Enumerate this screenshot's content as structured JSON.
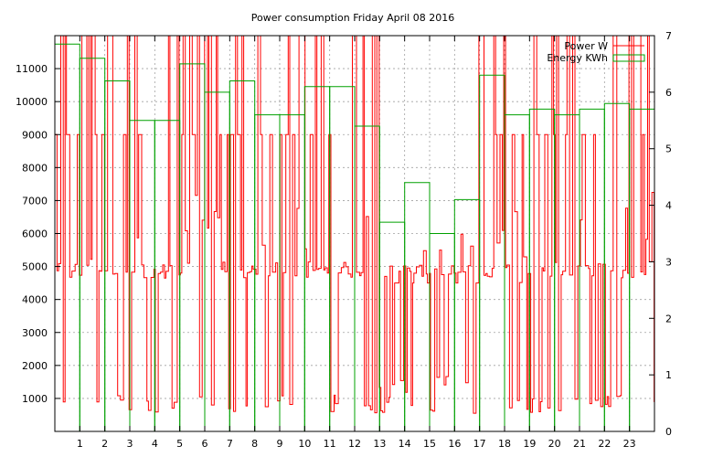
{
  "chart_data": {
    "type": "line",
    "title": "Power consumption Friday April 08 2016",
    "xlabel": "",
    "ylabel": "",
    "y2label": "",
    "xlim": [
      0,
      24
    ],
    "ylim": [
      0,
      12000
    ],
    "y2lim": [
      0,
      7
    ],
    "x_ticks": [
      1,
      2,
      3,
      4,
      5,
      6,
      7,
      8,
      9,
      10,
      11,
      12,
      13,
      14,
      15,
      16,
      17,
      18,
      19,
      20,
      21,
      22,
      23
    ],
    "y_ticks": [
      1000,
      2000,
      3000,
      4000,
      5000,
      6000,
      7000,
      8000,
      9000,
      10000,
      11000
    ],
    "y2_ticks": [
      0,
      1,
      2,
      3,
      4,
      5,
      6,
      7
    ],
    "grid": true,
    "legend_position": "top-right",
    "series": [
      {
        "name": "Power W",
        "color": "#ff0000",
        "axis": "left",
        "style": "oscillating-line",
        "baseline": 4900,
        "peak_high": 12000,
        "peak_mid": 9000,
        "low": 500,
        "quiet_hours": [
          12.9,
          16.9
        ]
      },
      {
        "name": "Energy KWh",
        "color": "#00a000",
        "axis": "right",
        "style": "hourly-steps",
        "x": [
          0,
          1,
          2,
          3,
          4,
          5,
          6,
          7,
          8,
          9,
          10,
          11,
          12,
          13,
          14,
          15,
          16,
          17,
          18,
          19,
          20,
          21,
          22,
          23
        ],
        "values": [
          6.85,
          6.6,
          6.2,
          5.5,
          5.5,
          6.5,
          6.0,
          6.2,
          5.6,
          5.6,
          6.1,
          6.1,
          5.4,
          3.7,
          4.4,
          3.5,
          4.1,
          6.3,
          5.6,
          5.7,
          5.6,
          5.7,
          5.8,
          5.7
        ]
      }
    ]
  }
}
